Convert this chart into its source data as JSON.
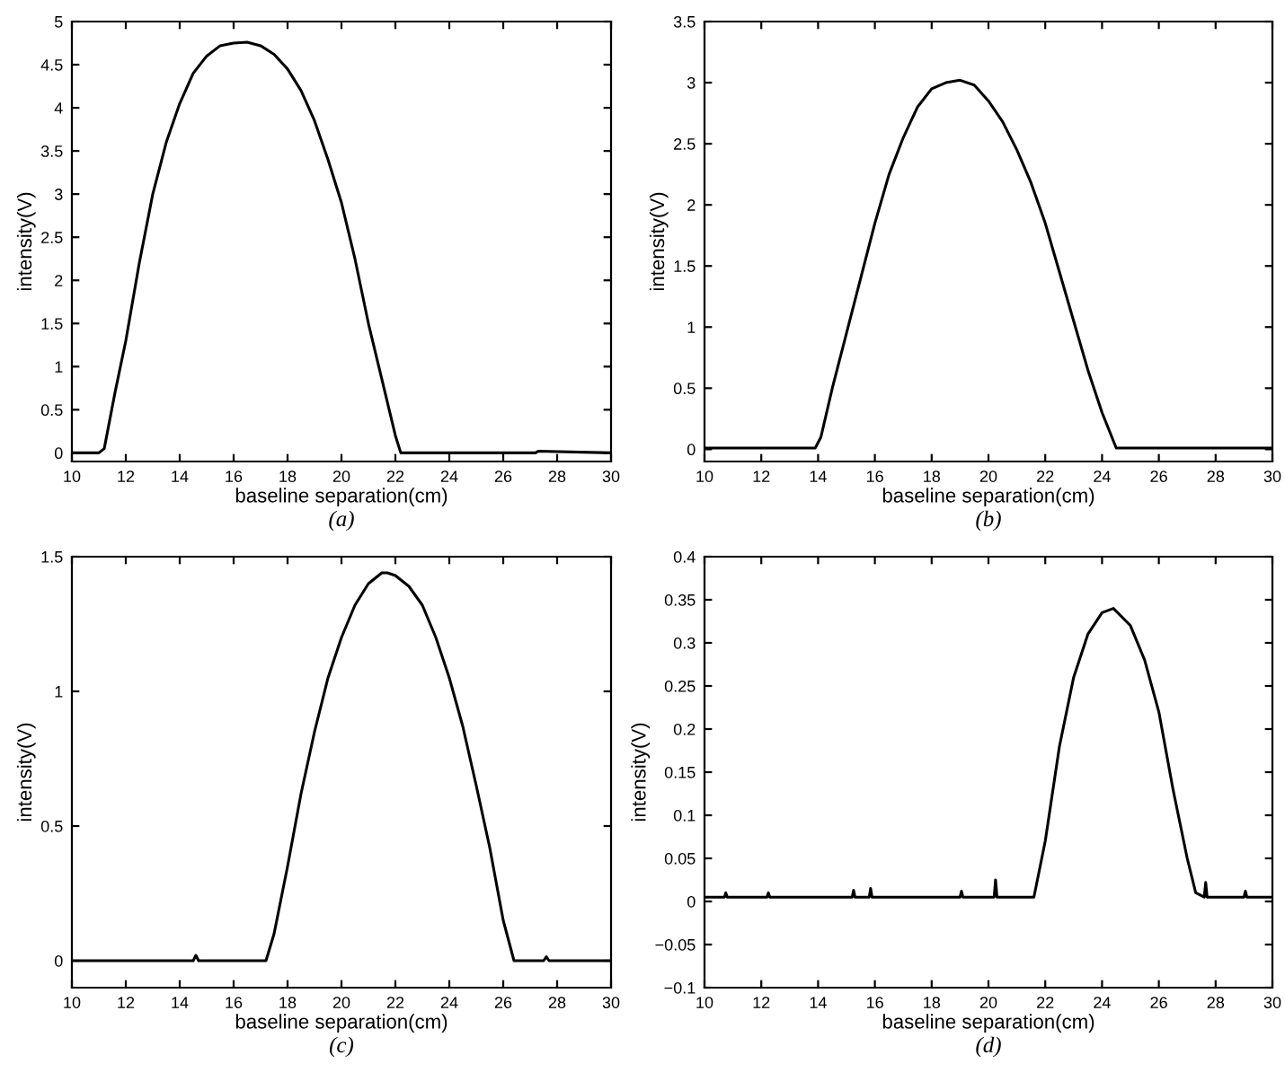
{
  "chart_data": [
    {
      "type": "line",
      "xlabel": "baseline separation(cm)",
      "ylabel": "intensity(V)",
      "annotations": [
        "(a)"
      ],
      "grid": false,
      "legend": false,
      "xlim": [
        10,
        30
      ],
      "xticks": [
        10,
        12,
        14,
        16,
        18,
        20,
        22,
        24,
        26,
        28,
        30
      ],
      "ylim": [
        -0.1,
        5
      ],
      "yticks": [
        0,
        0.5,
        1,
        1.5,
        2,
        2.5,
        3,
        3.5,
        4,
        4.5,
        5
      ],
      "series": [
        {
          "color": "#000000",
          "x": [
            10,
            11,
            11.2,
            11.6,
            12,
            12.5,
            13,
            13.5,
            14,
            14.5,
            15,
            15.5,
            16,
            16.5,
            17,
            17.5,
            18,
            18.5,
            19,
            19.5,
            20,
            20.5,
            21,
            21.5,
            22,
            22.2,
            25,
            27.2,
            27.3,
            30
          ],
          "values": [
            0,
            0,
            0.05,
            0.7,
            1.3,
            2.2,
            3.0,
            3.6,
            4.05,
            4.4,
            4.6,
            4.72,
            4.75,
            4.76,
            4.72,
            4.62,
            4.45,
            4.2,
            3.85,
            3.4,
            2.9,
            2.25,
            1.5,
            0.85,
            0.2,
            0,
            0,
            0,
            0.02,
            0
          ]
        }
      ]
    },
    {
      "type": "line",
      "xlabel": "baseline separation(cm)",
      "ylabel": "intensity(V)",
      "annotations": [
        "(b)"
      ],
      "grid": false,
      "legend": false,
      "xlim": [
        10,
        30
      ],
      "xticks": [
        10,
        12,
        14,
        16,
        18,
        20,
        22,
        24,
        26,
        28,
        30
      ],
      "ylim": [
        -0.1,
        3.5
      ],
      "yticks": [
        0,
        0.5,
        1,
        1.5,
        2,
        2.5,
        3,
        3.5
      ],
      "series": [
        {
          "color": "#000000",
          "x": [
            10,
            13.9,
            14.1,
            14.5,
            15,
            15.5,
            16,
            16.5,
            17,
            17.5,
            18,
            18.5,
            19,
            19.5,
            20,
            20.5,
            21,
            21.5,
            22,
            22.5,
            23,
            23.5,
            24,
            24.5,
            30
          ],
          "values": [
            0.01,
            0.01,
            0.1,
            0.5,
            0.95,
            1.4,
            1.85,
            2.25,
            2.55,
            2.8,
            2.95,
            3.0,
            3.02,
            2.98,
            2.85,
            2.68,
            2.45,
            2.18,
            1.85,
            1.45,
            1.05,
            0.65,
            0.3,
            0.01,
            0.01
          ]
        }
      ]
    },
    {
      "type": "line",
      "xlabel": "baseline separation(cm)",
      "ylabel": "intensity(V)",
      "annotations": [
        "(c)"
      ],
      "grid": false,
      "legend": false,
      "xlim": [
        10,
        30
      ],
      "xticks": [
        10,
        12,
        14,
        16,
        18,
        20,
        22,
        24,
        26,
        28,
        30
      ],
      "ylim": [
        -0.1,
        1.5
      ],
      "yticks": [
        0,
        0.5,
        1,
        1.5
      ],
      "series": [
        {
          "color": "#000000",
          "x": [
            10,
            14.5,
            14.6,
            14.7,
            17.2,
            17.5,
            18,
            18.5,
            19,
            19.5,
            20,
            20.5,
            21,
            21.5,
            21.7,
            22,
            22.5,
            23,
            23.5,
            24,
            24.5,
            25,
            25.5,
            26,
            26.4,
            27.5,
            27.6,
            27.7,
            30
          ],
          "values": [
            0,
            0,
            0.02,
            0,
            0,
            0.1,
            0.35,
            0.62,
            0.85,
            1.05,
            1.2,
            1.32,
            1.4,
            1.44,
            1.44,
            1.43,
            1.39,
            1.32,
            1.2,
            1.05,
            0.87,
            0.65,
            0.42,
            0.15,
            0,
            0,
            0.015,
            0,
            0
          ]
        }
      ]
    },
    {
      "type": "line",
      "xlabel": "baseline separation(cm)",
      "ylabel": "intensity(V)",
      "annotations": [
        "(d)"
      ],
      "grid": false,
      "legend": false,
      "xlim": [
        10,
        30
      ],
      "xticks": [
        10,
        12,
        14,
        16,
        18,
        20,
        22,
        24,
        26,
        28,
        30
      ],
      "ylim": [
        -0.1,
        0.4
      ],
      "yticks": [
        {
          "value": -0.1,
          "label": "−0.1"
        },
        {
          "value": -0.05,
          "label": "−0.05"
        },
        0,
        0.05,
        0.1,
        0.15,
        0.2,
        0.25,
        0.3,
        0.35,
        0.4
      ],
      "series": [
        {
          "color": "#000000",
          "x": [
            10,
            10.7,
            10.75,
            10.8,
            12.2,
            12.25,
            12.3,
            15.2,
            15.25,
            15.3,
            15.8,
            15.85,
            15.9,
            19.0,
            19.05,
            19.1,
            20.2,
            20.25,
            20.3,
            21.6,
            22,
            22.5,
            23,
            23.5,
            24,
            24.4,
            25,
            25.5,
            26,
            26.5,
            27,
            27.3,
            27.6,
            27.65,
            27.7,
            29.0,
            29.05,
            29.1,
            30
          ],
          "values": [
            0.005,
            0.005,
            0.01,
            0.005,
            0.005,
            0.01,
            0.005,
            0.005,
            0.013,
            0.005,
            0.005,
            0.015,
            0.005,
            0.005,
            0.012,
            0.005,
            0.005,
            0.025,
            0.005,
            0.005,
            0.07,
            0.18,
            0.26,
            0.31,
            0.335,
            0.34,
            0.32,
            0.28,
            0.22,
            0.13,
            0.05,
            0.01,
            0.005,
            0.022,
            0.005,
            0.005,
            0.012,
            0.005,
            0.005
          ]
        }
      ]
    }
  ]
}
